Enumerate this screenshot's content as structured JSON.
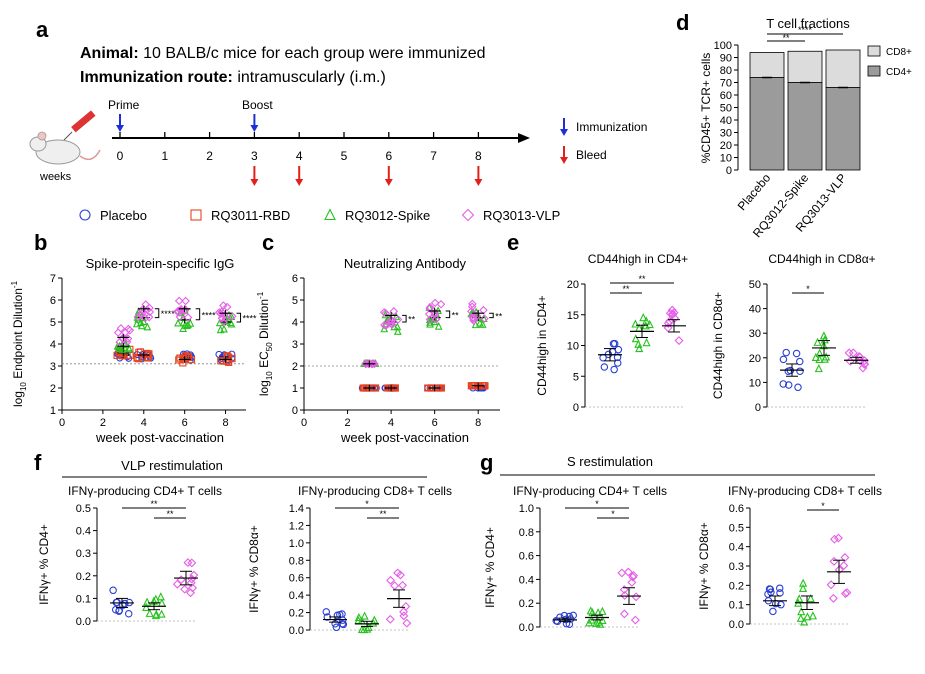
{
  "colors": {
    "placebo": "#2b3fd4",
    "rbd": "#e8431e",
    "spike": "#27c21e",
    "vlp": "#e65ee8",
    "immunization": "#1f2fd8",
    "bleed": "#e0201b",
    "cd4_bar": "#9b9b9b",
    "cd8_bar": "#dcdcdc",
    "threshold": "#888888"
  },
  "panel_a": {
    "letter": "a",
    "animal_label": "Animal:",
    "animal_text": " 10 BALB/c mice for each group were immunized",
    "route_label": "Immunization route:",
    "route_text": " intramuscularly (i.m.)",
    "prime": "Prime",
    "boost": "Boost",
    "weeks_label": "weeks",
    "ticks": [
      "0",
      "1",
      "2",
      "3",
      "4",
      "5",
      "6",
      "7",
      "8"
    ],
    "prime_week": 0,
    "boost_week": 3,
    "bleed_weeks": [
      3,
      4,
      6,
      8
    ],
    "legend_immunization": "Immunization",
    "legend_bleed": "Bleed",
    "mouse_icon": "mouse-syringe-icon"
  },
  "group_legend": [
    {
      "label": "Placebo",
      "marker": "circle",
      "color": "#2b3fd4"
    },
    {
      "label": "RQ3011-RBD",
      "marker": "square",
      "color": "#e8431e"
    },
    {
      "label": "RQ3012-Spike",
      "marker": "triangle",
      "color": "#27c21e"
    },
    {
      "label": "RQ3013-VLP",
      "marker": "diamond",
      "color": "#e65ee8"
    }
  ],
  "panel_b": {
    "letter": "b",
    "title": "Spike-protein-specific IgG",
    "ylabel": "log10 Endpoint Dilution-1",
    "xlabel": "week post-vaccination",
    "sig": "****"
  },
  "panel_c": {
    "letter": "c",
    "title": "Neutralizing Antibody",
    "ylabel": "log10 EC50 Dilution-1",
    "xlabel": "week post-vaccination",
    "sig": "**"
  },
  "panel_d": {
    "letter": "d",
    "title": "T cell fractions",
    "ylabel": "%CD45+ TCR+ cells",
    "legend_cd8": "CD8+",
    "legend_cd4": "CD4+",
    "sig1": "**",
    "sig2": "****"
  },
  "panel_e": {
    "letter": "e",
    "title1": "CD44high in CD4+",
    "ylabel1": "CD44high in CD4+",
    "sig1a": "**",
    "sig1b": "**",
    "title2": "CD44high in CD8α+",
    "ylabel2": "CD44high in CD8α+",
    "sig2": "*"
  },
  "panel_f": {
    "letter": "f",
    "header": "VLP restimulation",
    "title1": "IFNγ-producing CD4+ T cells",
    "ylabel1": "IFNγ+ % CD4+",
    "sig1a": "**",
    "sig1b": "**",
    "title2": "IFNγ-producing CD8+ T cells",
    "ylabel2": "IFNγ+ % CD8α+",
    "sig2a": "*",
    "sig2b": "**"
  },
  "panel_g": {
    "letter": "g",
    "header": "S restimulation",
    "title1": "IFNγ-producing CD4+ T cells",
    "ylabel1": "IFNγ+ % CD4+",
    "sig1a": "*",
    "sig1b": "*",
    "title2": "IFNγ-producing CD8+ T cells",
    "ylabel2": "IFNγ+ % CD8α+",
    "sig2": "*"
  },
  "chart_data": [
    {
      "id": "b",
      "type": "scatter",
      "title": "Spike-protein-specific IgG",
      "xlabel": "week post-vaccination",
      "ylabel": "log10 Endpoint Dilution-1",
      "x_ticks": [
        "0",
        "2",
        "4",
        "6",
        "8"
      ],
      "y_ticks": [
        "1",
        "2",
        "3",
        "4",
        "5",
        "6",
        "7"
      ],
      "xlim": [
        0,
        9
      ],
      "ylim": [
        1,
        7
      ],
      "threshold": 3.1,
      "weeks": [
        3,
        4,
        6,
        8
      ],
      "series": [
        {
          "name": "Placebo",
          "marker": "circle",
          "color": "#2b3fd4",
          "means": [
            3.5,
            3.5,
            3.4,
            3.4
          ]
        },
        {
          "name": "RQ3011-RBD",
          "marker": "square",
          "color": "#e8431e",
          "means": [
            3.6,
            3.5,
            3.3,
            3.3
          ]
        },
        {
          "name": "RQ3012-Spike",
          "marker": "triangle",
          "color": "#27c21e",
          "means": [
            3.9,
            5.2,
            5.1,
            5.0
          ]
        },
        {
          "name": "RQ3013-VLP",
          "marker": "diamond",
          "color": "#e65ee8",
          "means": [
            4.3,
            5.6,
            5.6,
            5.4
          ]
        }
      ]
    },
    {
      "id": "c",
      "type": "scatter",
      "title": "Neutralizing Antibody",
      "xlabel": "week post-vaccination",
      "ylabel": "log10 EC50 Dilution-1",
      "x_ticks": [
        "0",
        "2",
        "4",
        "6",
        "8"
      ],
      "y_ticks": [
        "0",
        "1",
        "2",
        "3",
        "4",
        "5",
        "6"
      ],
      "xlim": [
        0,
        9
      ],
      "ylim": [
        0,
        6
      ],
      "threshold": 2.0,
      "weeks": [
        3,
        4,
        6,
        8
      ],
      "series": [
        {
          "name": "Placebo",
          "marker": "circle",
          "color": "#2b3fd4",
          "means": [
            1.0,
            1.0,
            1.0,
            1.0
          ]
        },
        {
          "name": "RQ3011-RBD",
          "marker": "square",
          "color": "#e8431e",
          "means": [
            1.0,
            1.0,
            1.0,
            1.1
          ]
        },
        {
          "name": "RQ3012-Spike",
          "marker": "triangle",
          "color": "#27c21e",
          "means": [
            2.1,
            4.0,
            4.2,
            4.2
          ]
        },
        {
          "name": "RQ3013-VLP",
          "marker": "diamond",
          "color": "#e65ee8",
          "means": [
            2.1,
            4.3,
            4.5,
            4.4
          ]
        }
      ]
    },
    {
      "id": "d",
      "type": "bar",
      "title": "T cell fractions",
      "ylabel": "%CD45+ TCR+ cells",
      "categories": [
        "Placebo",
        "RQ3012-Spike",
        "RQ3013-VLP"
      ],
      "y_ticks": [
        "0",
        "10",
        "20",
        "30",
        "40",
        "50",
        "60",
        "70",
        "80",
        "90",
        "100"
      ],
      "ylim": [
        0,
        100
      ],
      "series": [
        {
          "name": "CD4+",
          "values": [
            74,
            70,
            66
          ]
        },
        {
          "name": "CD8+",
          "values": [
            20,
            25,
            30
          ]
        }
      ]
    },
    {
      "id": "e1",
      "type": "scatter",
      "title": "CD44high in CD4+",
      "ylim": [
        0,
        20
      ],
      "y_ticks": [
        "0",
        "5",
        "10",
        "15",
        "20"
      ],
      "groups": [
        {
          "marker": "circle",
          "color": "#2b3fd4",
          "mean": 8.5,
          "sem": 1.0
        },
        {
          "marker": "triangle",
          "color": "#27c21e",
          "mean": 12.3,
          "sem": 1.0
        },
        {
          "marker": "diamond",
          "color": "#e65ee8",
          "mean": 13.2,
          "sem": 1.0
        }
      ]
    },
    {
      "id": "e2",
      "type": "scatter",
      "title": "CD44high in CD8α+",
      "ylim": [
        0,
        50
      ],
      "y_ticks": [
        "0",
        "10",
        "20",
        "30",
        "40",
        "50"
      ],
      "groups": [
        {
          "marker": "circle",
          "color": "#2b3fd4",
          "mean": 15,
          "sem": 2.5
        },
        {
          "marker": "triangle",
          "color": "#27c21e",
          "mean": 24,
          "sem": 3.0
        },
        {
          "marker": "diamond",
          "color": "#e65ee8",
          "mean": 19,
          "sem": 1.2
        }
      ]
    },
    {
      "id": "f1",
      "type": "scatter",
      "title": "IFNγ-producing CD4+ T cells",
      "ylim": [
        0,
        0.5
      ],
      "y_ticks": [
        "0.0",
        "0.1",
        "0.2",
        "0.3",
        "0.4",
        "0.5"
      ],
      "groups": [
        {
          "marker": "circle",
          "color": "#2b3fd4",
          "mean": 0.08,
          "sem": 0.02
        },
        {
          "marker": "triangle",
          "color": "#27c21e",
          "mean": 0.065,
          "sem": 0.015
        },
        {
          "marker": "diamond",
          "color": "#e65ee8",
          "mean": 0.19,
          "sem": 0.03
        }
      ]
    },
    {
      "id": "f2",
      "type": "scatter",
      "title": "IFNγ-producing CD8+ T cells",
      "ylim": [
        0,
        1.4
      ],
      "y_ticks": [
        "0.0",
        "0.2",
        "0.4",
        "0.6",
        "0.8",
        "1.0",
        "1.2",
        "1.4"
      ],
      "groups": [
        {
          "marker": "circle",
          "color": "#2b3fd4",
          "mean": 0.12,
          "sem": 0.03
        },
        {
          "marker": "triangle",
          "color": "#27c21e",
          "mean": 0.07,
          "sem": 0.03
        },
        {
          "marker": "diamond",
          "color": "#e65ee8",
          "mean": 0.36,
          "sem": 0.1
        }
      ]
    },
    {
      "id": "g1",
      "type": "scatter",
      "title": "IFNγ-producing CD4+ T cells",
      "ylim": [
        0,
        1.0
      ],
      "y_ticks": [
        "0.0",
        "0.2",
        "0.4",
        "0.6",
        "0.8",
        "1.0"
      ],
      "groups": [
        {
          "marker": "circle",
          "color": "#2b3fd4",
          "mean": 0.06,
          "sem": 0.015
        },
        {
          "marker": "triangle",
          "color": "#27c21e",
          "mean": 0.08,
          "sem": 0.02
        },
        {
          "marker": "diamond",
          "color": "#e65ee8",
          "mean": 0.26,
          "sem": 0.07
        }
      ]
    },
    {
      "id": "g2",
      "type": "scatter",
      "title": "IFNγ-producing CD8+ T cells",
      "ylim": [
        0,
        0.6
      ],
      "y_ticks": [
        "0.0",
        "0.1",
        "0.2",
        "0.3",
        "0.4",
        "0.5",
        "0.6"
      ],
      "groups": [
        {
          "marker": "circle",
          "color": "#2b3fd4",
          "mean": 0.12,
          "sem": 0.025
        },
        {
          "marker": "triangle",
          "color": "#27c21e",
          "mean": 0.11,
          "sem": 0.035
        },
        {
          "marker": "diamond",
          "color": "#e65ee8",
          "mean": 0.27,
          "sem": 0.06
        }
      ]
    }
  ]
}
